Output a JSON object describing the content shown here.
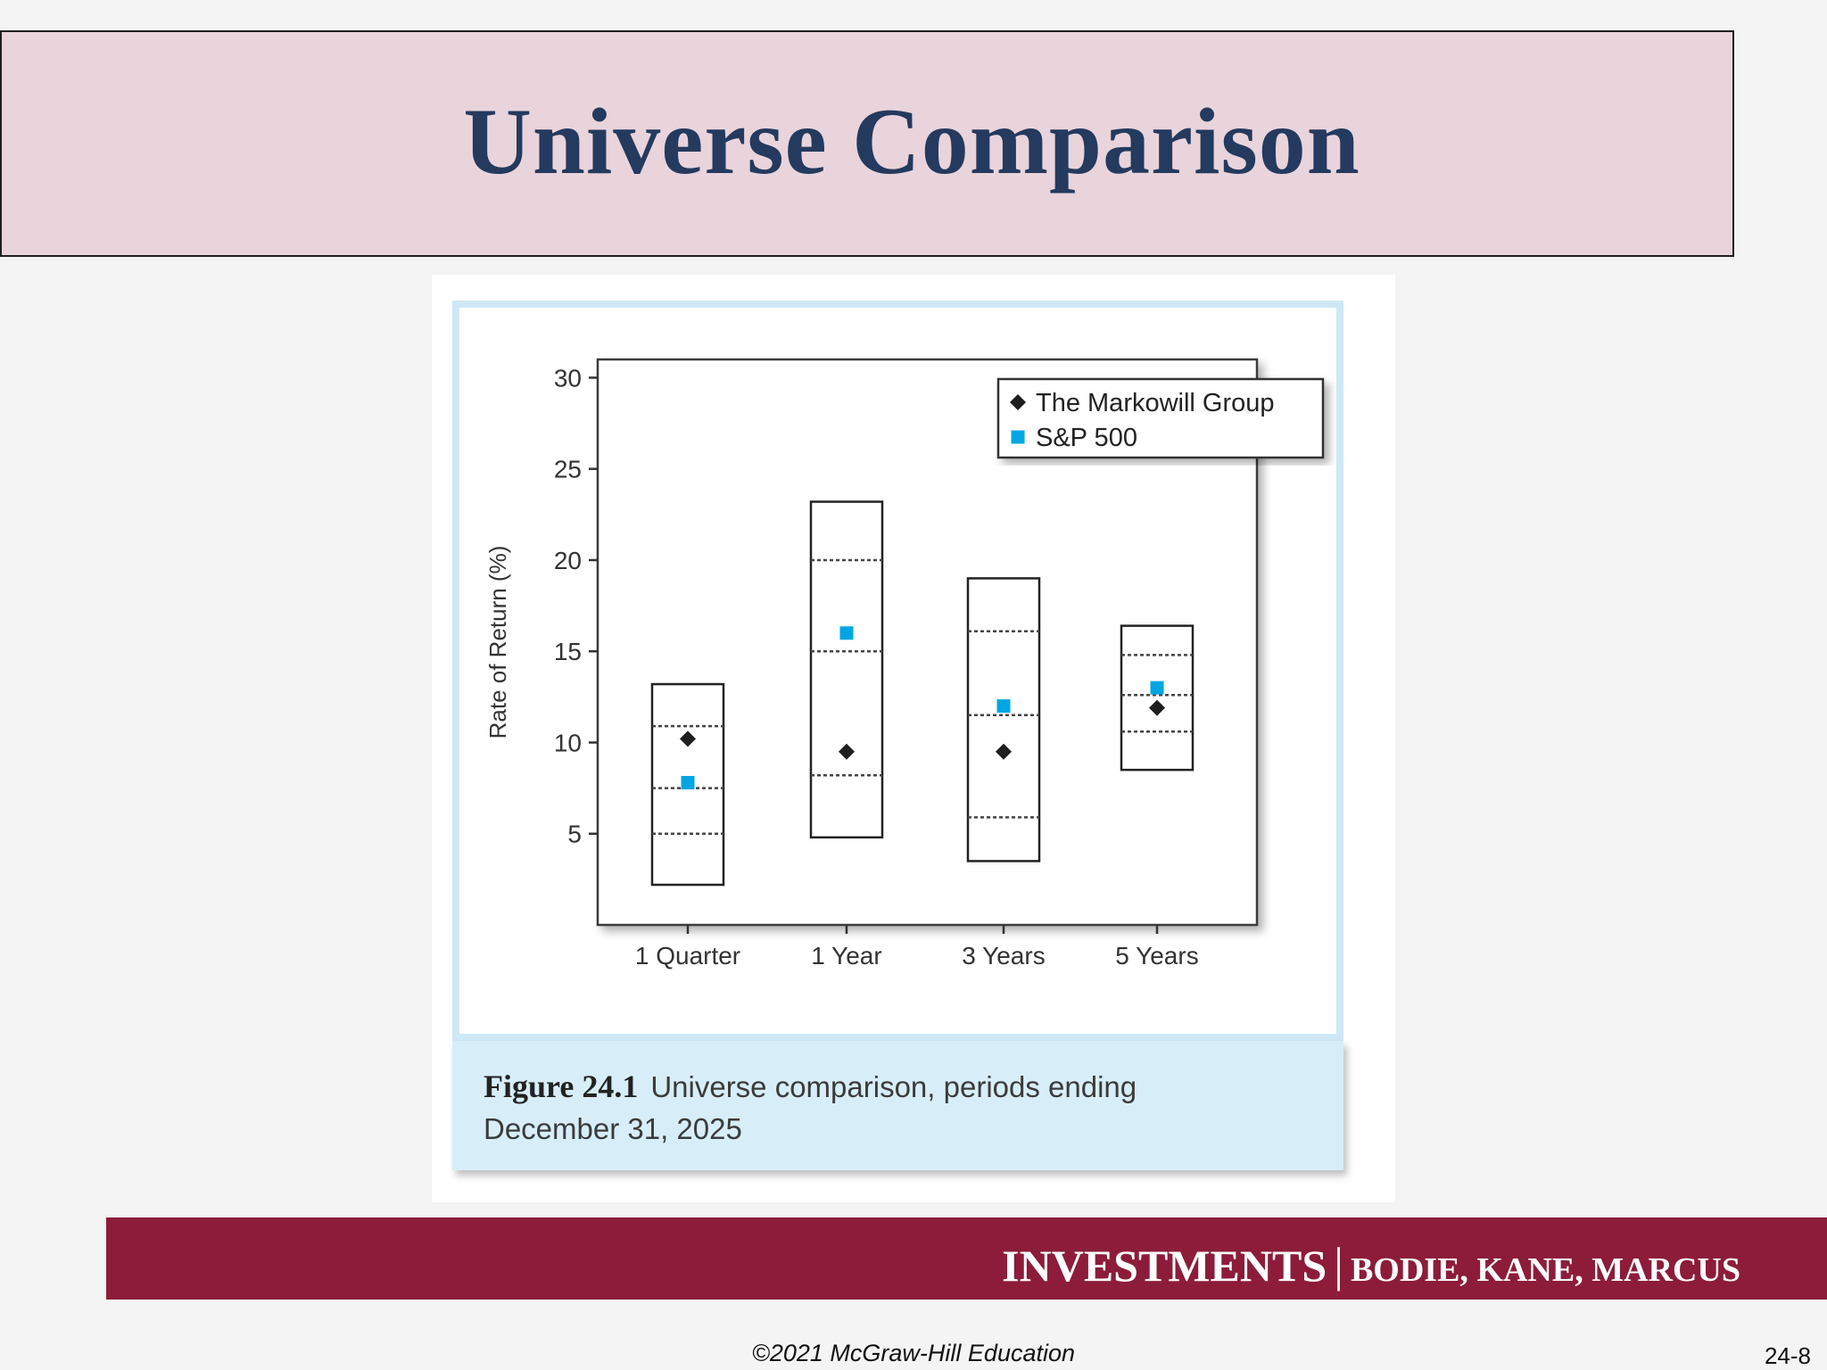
{
  "slide": {
    "title": "Universe Comparison",
    "caption_label": "Figure 24.1",
    "caption_line1": "Universe comparison, periods ending",
    "caption_line2": "December 31, 2025",
    "footer_main": "INVESTMENTS",
    "footer_sep": "|",
    "footer_authors": "BODIE, KANE, MARCUS",
    "copyright": "©2021 McGraw-Hill Education",
    "slide_number": "24-8"
  },
  "colors": {
    "title": "#243a5e",
    "title_band": "#e9d4dc",
    "footer_band": "#8c1c3a",
    "markowill": "#1e1e1e",
    "sp500": "#00a6e2"
  },
  "chart_data": {
    "type": "box-range",
    "ylabel": "Rate of Return (%)",
    "xlabel": "",
    "ylim": [
      0,
      31
    ],
    "yticks": [
      5,
      10,
      15,
      20,
      25,
      30
    ],
    "categories": [
      "1 Quarter",
      "1 Year",
      "3 Years",
      "5 Years"
    ],
    "ranges": [
      {
        "min": 2.2,
        "max": 13.2,
        "quartiles": [
          5.0,
          7.5,
          10.9
        ]
      },
      {
        "min": 4.8,
        "max": 23.2,
        "quartiles": [
          8.2,
          15.0,
          20.0
        ]
      },
      {
        "min": 3.5,
        "max": 19.0,
        "quartiles": [
          5.9,
          11.5,
          16.1
        ]
      },
      {
        "min": 8.5,
        "max": 16.4,
        "quartiles": [
          10.6,
          12.6,
          14.8
        ]
      }
    ],
    "series": [
      {
        "name": "The Markowill Group",
        "marker": "diamond",
        "values": [
          10.2,
          9.5,
          9.5,
          11.9
        ]
      },
      {
        "name": "S&P 500",
        "marker": "square",
        "values": [
          7.8,
          16.0,
          12.0,
          13.0
        ]
      }
    ],
    "legend_position": "top-right",
    "grid": false
  }
}
